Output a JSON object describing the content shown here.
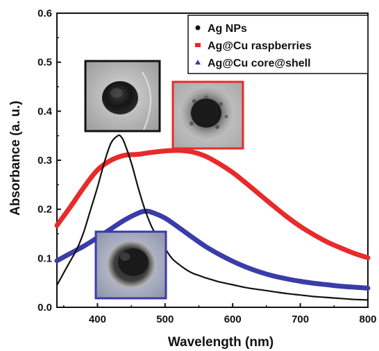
{
  "chart_data": {
    "type": "line",
    "title": "",
    "xlabel": "Wavelength (nm)",
    "ylabel": "Absorbance (a. u.)",
    "xlim": [
      340,
      800
    ],
    "ylim": [
      0.0,
      0.6
    ],
    "x_ticks": [
      400,
      500,
      600,
      700,
      800
    ],
    "y_ticks": [
      0.0,
      0.1,
      0.2,
      0.3,
      0.4,
      0.5,
      0.6
    ],
    "x_tick_labels": [
      "400",
      "500",
      "600",
      "700",
      "800"
    ],
    "y_tick_labels": [
      "0.0",
      "0.1",
      "0.2",
      "0.3",
      "0.4",
      "0.5",
      "0.6"
    ],
    "grid": false,
    "legend_position": "top-right",
    "series": [
      {
        "name": "Ag NPs",
        "color": "#111111",
        "marker": "circle",
        "x": [
          340,
          350,
          360,
          370,
          380,
          390,
          400,
          410,
          420,
          430,
          435,
          440,
          450,
          460,
          470,
          480,
          490,
          500,
          510,
          520,
          530,
          540,
          550,
          560,
          570,
          580,
          600,
          620,
          640,
          660,
          680,
          700,
          720,
          740,
          760,
          780,
          800
        ],
        "y": [
          0.045,
          0.07,
          0.095,
          0.12,
          0.155,
          0.2,
          0.245,
          0.295,
          0.335,
          0.35,
          0.348,
          0.335,
          0.295,
          0.245,
          0.2,
          0.165,
          0.14,
          0.12,
          0.1,
          0.088,
          0.078,
          0.07,
          0.065,
          0.06,
          0.056,
          0.052,
          0.046,
          0.04,
          0.036,
          0.032,
          0.028,
          0.025,
          0.022,
          0.02,
          0.018,
          0.016,
          0.015
        ]
      },
      {
        "name": "Ag@Cu raspberries",
        "color": "#e82a2a",
        "marker": "square",
        "x": [
          340,
          360,
          380,
          400,
          420,
          440,
          460,
          480,
          500,
          520,
          540,
          560,
          580,
          600,
          620,
          640,
          660,
          680,
          700,
          720,
          740,
          760,
          780,
          800
        ],
        "y": [
          0.167,
          0.205,
          0.245,
          0.28,
          0.3,
          0.31,
          0.312,
          0.316,
          0.319,
          0.32,
          0.317,
          0.308,
          0.293,
          0.275,
          0.253,
          0.23,
          0.207,
          0.185,
          0.165,
          0.148,
          0.133,
          0.121,
          0.11,
          0.101
        ]
      },
      {
        "name": "Ag@Cu core@shell",
        "color": "#3a3ca8",
        "marker": "triangle",
        "x": [
          340,
          360,
          380,
          400,
          420,
          440,
          460,
          470,
          480,
          500,
          520,
          540,
          560,
          580,
          600,
          620,
          640,
          660,
          680,
          700,
          720,
          740,
          760,
          780,
          800
        ],
        "y": [
          0.095,
          0.11,
          0.125,
          0.142,
          0.16,
          0.178,
          0.192,
          0.196,
          0.194,
          0.182,
          0.163,
          0.143,
          0.124,
          0.108,
          0.094,
          0.082,
          0.072,
          0.064,
          0.058,
          0.053,
          0.049,
          0.046,
          0.043,
          0.041,
          0.039
        ]
      }
    ],
    "insets": [
      {
        "name": "tem-inset-ag-nps",
        "border_color": "#111111",
        "description_hidden": true
      },
      {
        "name": "tem-inset-ag-cu-raspberries",
        "border_color": "#e82a2a",
        "description_hidden": true
      },
      {
        "name": "tem-inset-ag-cu-core-shell",
        "border_color": "#3a3ca8",
        "description_hidden": true
      }
    ]
  }
}
